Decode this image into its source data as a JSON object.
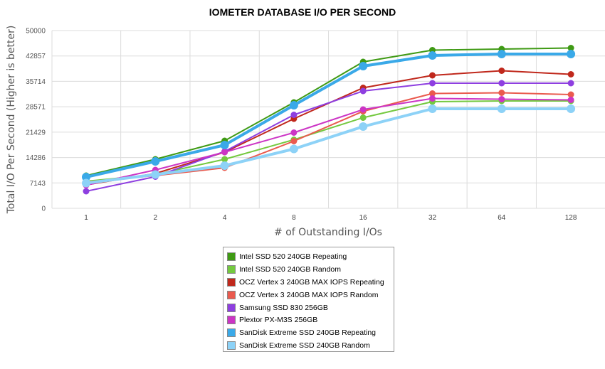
{
  "chart_data": {
    "type": "line",
    "title": "IOMETER DATABASE I/O PER SECOND",
    "xlabel": "# of Outstanding I/Os",
    "ylabel": "Total I/O Per Second (Higher is better)",
    "categories": [
      "1",
      "2",
      "4",
      "8",
      "16",
      "32",
      "64",
      "128"
    ],
    "yticks": [
      "0",
      "7143",
      "14286",
      "21429",
      "28571",
      "35714",
      "42857",
      "50000"
    ],
    "ylim": [
      0,
      50000
    ],
    "grid": true,
    "legend_position": "bottom",
    "series": [
      {
        "name": "Intel SSD 520 240GB Repeating",
        "color": "#3f9a14",
        "values": [
          9200,
          13800,
          19000,
          29800,
          41200,
          44500,
          44800,
          45100
        ]
      },
      {
        "name": "Intel SSD 520 240GB Random",
        "color": "#74c93f",
        "values": [
          7600,
          9500,
          13800,
          19300,
          25500,
          30000,
          30200,
          30200
        ]
      },
      {
        "name": "OCZ Vertex 3 240GB MAX IOPS Repeating",
        "color": "#c0281c",
        "values": [
          6600,
          9800,
          15800,
          25200,
          33900,
          37400,
          38700,
          37700
        ]
      },
      {
        "name": "OCZ Vertex 3 240GB MAX IOPS Random",
        "color": "#ea5a4e",
        "values": [
          7400,
          9200,
          11400,
          18900,
          27300,
          32300,
          32500,
          32000
        ]
      },
      {
        "name": "Samsung SSD 830 256GB",
        "color": "#8e3fe0",
        "values": [
          4800,
          8900,
          16000,
          26300,
          33000,
          35200,
          35200,
          35200
        ]
      },
      {
        "name": "Plextor PX-M3S 256GB",
        "color": "#cc35c5",
        "values": [
          6500,
          10800,
          15800,
          21300,
          27800,
          30900,
          30700,
          30500
        ]
      },
      {
        "name": "SanDisk Extreme SSD 240GB Repeating",
        "color": "#3aa9e8",
        "values": [
          8800,
          13200,
          17800,
          29000,
          40000,
          43000,
          43400,
          43400
        ]
      },
      {
        "name": "SanDisk Extreme SSD 240GB Random",
        "color": "#8dd2f7",
        "values": [
          7100,
          9500,
          12000,
          16700,
          23000,
          28000,
          28000,
          28000
        ]
      }
    ]
  }
}
